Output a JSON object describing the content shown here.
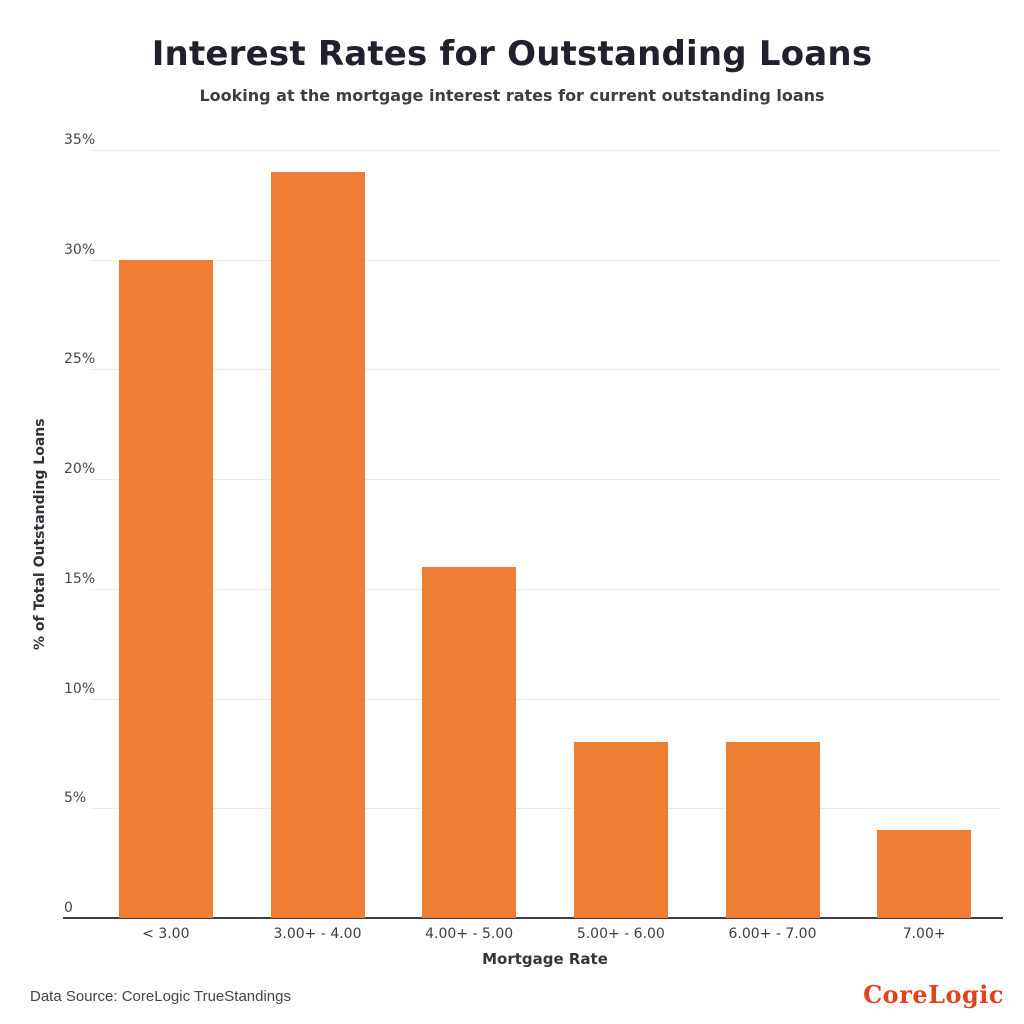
{
  "header": {
    "title": "Interest Rates for Outstanding Loans",
    "subtitle": "Looking at the mortgage interest rates for current outstanding loans"
  },
  "chart_data": {
    "type": "bar",
    "title": "Interest Rates for Outstanding Loans",
    "subtitle": "Looking at the mortgage interest rates for current outstanding loans",
    "categories": [
      "< 3.00",
      "3.00+ - 4.00",
      "4.00+ - 5.00",
      "5.00+ - 6.00",
      "6.00+ - 7.00",
      "7.00+"
    ],
    "values": [
      30,
      34,
      16,
      8,
      8,
      4
    ],
    "xlabel": "Mortgage Rate",
    "ylabel": "% of Total Outstanding Loans",
    "ylim": [
      0,
      35
    ],
    "yticks": [
      {
        "value": 0,
        "label": "0"
      },
      {
        "value": 5,
        "label": "5%"
      },
      {
        "value": 10,
        "label": "10%"
      },
      {
        "value": 15,
        "label": "15%"
      },
      {
        "value": 20,
        "label": "20%"
      },
      {
        "value": 25,
        "label": "25%"
      },
      {
        "value": 30,
        "label": "30%"
      },
      {
        "value": 35,
        "label": "35%"
      }
    ],
    "grid": true,
    "legend": "none",
    "bar_color": "#EF7D33"
  },
  "footer": {
    "source": "Data Source: CoreLogic TrueStandings",
    "brand": "CoreLogic"
  },
  "colors": {
    "bar": "#EF7D33",
    "brand": "#E2431F",
    "gridline": "#ececec",
    "axis_line": "#3e3f44",
    "title_text": "#20212c"
  }
}
